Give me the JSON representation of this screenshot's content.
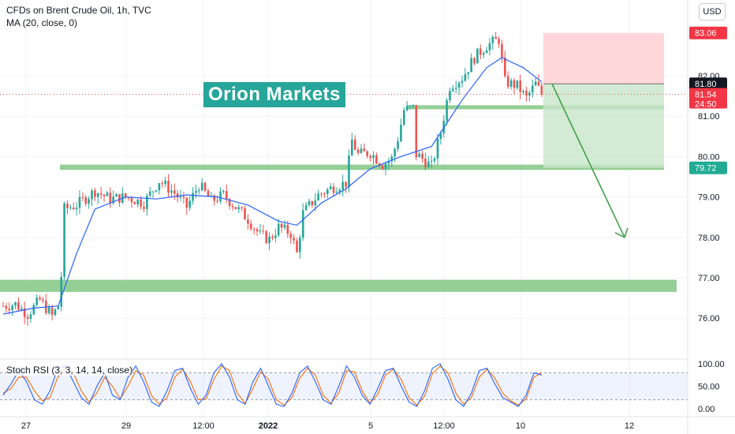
{
  "header": {
    "title": "CFDs on Brent Crude Oil, 1h, TVC",
    "indicator": "MA (20, close, 0)",
    "currency": "USD"
  },
  "watermark": "Orion Markets",
  "price_axis": {
    "labels": [
      "82.00",
      "81.00",
      "80.00",
      "79.00",
      "78.00",
      "77.00",
      "76.00"
    ],
    "badges": [
      {
        "value": "83.06",
        "color": "#f23645"
      },
      {
        "value": "81.80",
        "color": "#131722"
      },
      {
        "value": "81.54",
        "sub": "24:50",
        "color": "#f23645"
      },
      {
        "value": "79.72",
        "color": "#22ab94"
      }
    ]
  },
  "time_axis": {
    "labels": [
      "27",
      "29",
      "12:00",
      "2022",
      "5",
      "12:00",
      "10",
      "12"
    ]
  },
  "stoch": {
    "label": "Stoch RSI (3, 3, 14, 14, close)",
    "axis_labels": [
      "100.00",
      "50.00",
      "0.00"
    ],
    "k_color": "#2962ff",
    "d_color": "#ff6d00"
  },
  "colors": {
    "up": "#26a69a",
    "down": "#ef5350",
    "ma": "#2962ff",
    "zone": "#81c784",
    "stop_zone": "#ffcdd2",
    "target_zone": "#c8e6c9",
    "arrow": "#43a047"
  },
  "chart_data": {
    "type": "candlestick",
    "title": "CFDs on Brent Crude Oil, 1h, TVC",
    "y_unit": "USD",
    "ylim": [
      75.4,
      83.4
    ],
    "current_price": 81.54,
    "ma_period": 20,
    "path": [
      [
        0,
        76.3
      ],
      [
        4,
        76.35
      ],
      [
        8,
        76.1
      ],
      [
        12,
        76.45
      ],
      [
        16,
        76.05
      ],
      [
        18,
        76.3
      ],
      [
        19,
        77.05
      ],
      [
        20,
        78.7
      ],
      [
        24,
        78.8
      ],
      [
        30,
        79.15
      ],
      [
        35,
        78.95
      ],
      [
        40,
        79.0
      ],
      [
        46,
        78.85
      ],
      [
        51,
        79.4
      ],
      [
        56,
        79.1
      ],
      [
        60,
        78.75
      ],
      [
        64,
        79.3
      ],
      [
        68,
        78.9
      ],
      [
        72,
        79.05
      ],
      [
        76,
        78.75
      ],
      [
        80,
        78.45
      ],
      [
        84,
        78.05
      ],
      [
        87,
        77.95
      ],
      [
        90,
        78.25
      ],
      [
        94,
        78.1
      ],
      [
        96,
        77.6
      ],
      [
        98,
        78.6
      ],
      [
        103,
        79.05
      ],
      [
        108,
        79.25
      ],
      [
        112,
        79.35
      ],
      [
        114,
        80.4
      ],
      [
        116,
        80.05
      ],
      [
        120,
        80.1
      ],
      [
        124,
        79.8
      ],
      [
        127,
        79.95
      ],
      [
        129,
        80.45
      ],
      [
        131,
        81.15
      ],
      [
        134,
        81.2
      ],
      [
        135,
        80.05
      ],
      [
        137,
        79.95
      ],
      [
        140,
        79.75
      ],
      [
        143,
        80.6
      ],
      [
        146,
        81.75
      ],
      [
        150,
        81.95
      ],
      [
        154,
        82.45
      ],
      [
        158,
        82.75
      ],
      [
        162,
        82.9
      ],
      [
        164,
        81.85
      ],
      [
        168,
        81.75
      ],
      [
        171,
        81.45
      ],
      [
        174,
        81.8
      ],
      [
        176,
        81.54
      ]
    ],
    "ma_path": [
      [
        0,
        76.1
      ],
      [
        10,
        76.25
      ],
      [
        18,
        76.3
      ],
      [
        24,
        77.6
      ],
      [
        30,
        78.7
      ],
      [
        40,
        79.0
      ],
      [
        50,
        78.95
      ],
      [
        60,
        79.05
      ],
      [
        70,
        79.0
      ],
      [
        80,
        78.8
      ],
      [
        90,
        78.4
      ],
      [
        96,
        78.3
      ],
      [
        104,
        78.85
      ],
      [
        112,
        79.2
      ],
      [
        120,
        79.7
      ],
      [
        130,
        80.0
      ],
      [
        140,
        80.25
      ],
      [
        150,
        81.4
      ],
      [
        158,
        82.2
      ],
      [
        163,
        82.45
      ],
      [
        170,
        82.2
      ],
      [
        176,
        81.85
      ]
    ],
    "support_resistance_zones": [
      {
        "low": 76.65,
        "high": 76.95
      },
      {
        "low": 79.67,
        "high": 79.8
      },
      {
        "low": 81.17,
        "high": 81.27
      }
    ],
    "short_position": {
      "entry": 81.8,
      "stop": 83.06,
      "target": 79.72
    },
    "projection_arrow": {
      "from": 81.8,
      "to": 78.0
    },
    "stoch_rsi": {
      "ylim": [
        0,
        100
      ],
      "bands": [
        20,
        80
      ],
      "k": [
        30,
        55,
        85,
        60,
        20,
        10,
        40,
        90,
        95,
        60,
        25,
        10,
        50,
        80,
        30,
        20,
        70,
        95,
        60,
        15,
        5,
        40,
        85,
        90,
        45,
        10,
        30,
        80,
        100,
        70,
        20,
        10,
        60,
        90,
        50,
        10,
        5,
        35,
        80,
        95,
        60,
        20,
        10,
        50,
        95,
        70,
        30,
        10,
        45,
        85,
        90,
        50,
        15,
        5,
        40,
        90,
        100,
        65,
        20,
        5,
        35,
        85,
        90,
        55,
        25,
        15,
        5,
        30,
        80,
        75
      ],
      "d": [
        35,
        45,
        70,
        70,
        40,
        18,
        25,
        70,
        90,
        80,
        40,
        15,
        35,
        70,
        50,
        22,
        50,
        85,
        75,
        30,
        10,
        25,
        70,
        88,
        60,
        20,
        22,
        65,
        95,
        85,
        35,
        12,
        45,
        82,
        65,
        20,
        8,
        25,
        68,
        90,
        75,
        30,
        12,
        35,
        85,
        82,
        40,
        12,
        32,
        75,
        88,
        65,
        25,
        8,
        28,
        78,
        95,
        80,
        35,
        10,
        25,
        70,
        88,
        68,
        35,
        18,
        8,
        22,
        70,
        80
      ]
    }
  }
}
